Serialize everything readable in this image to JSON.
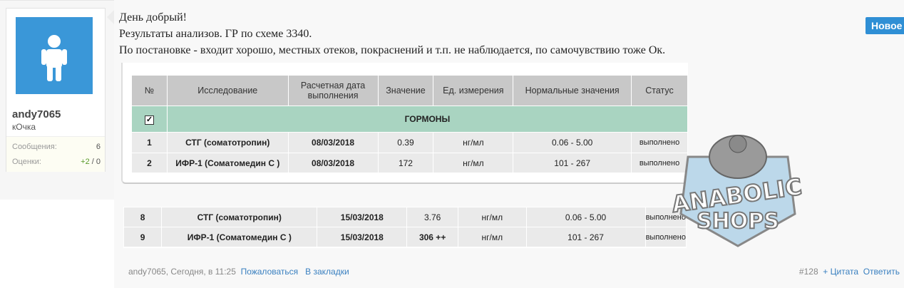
{
  "user": {
    "name": "andy7065",
    "title": "кОчка",
    "stats": [
      {
        "label": "Сообщения:",
        "value": "6"
      },
      {
        "label": "Оценки:",
        "value_pos": "+2",
        "value_rest": " / 0"
      }
    ]
  },
  "post": {
    "lines": [
      "День добрый!",
      "Результаты анализов. ГР по схеме 3340.",
      "По постановке - входит хорошо, местных отеков, покраснений и т.п. не наблюдается, по самочувствию тоже Ок."
    ],
    "new_label": "Новое"
  },
  "table1": {
    "headers": [
      "№",
      "Исследование",
      "Расчетная дата выполнения",
      "Значение",
      "Ед. измерения",
      "Нормальные значения",
      "Статус"
    ],
    "group": "ГОРМОНЫ",
    "rows": [
      [
        "1",
        "СТГ (соматотропин)",
        "08/03/2018",
        "0.39",
        "нг/мл",
        "0.06 - 5.00",
        "выполнено"
      ],
      [
        "2",
        "ИФР-1 (Соматомедин С )",
        "08/03/2018",
        "172",
        "нг/мл",
        "101 - 267",
        "выполнено"
      ]
    ]
  },
  "table2": {
    "rows": [
      [
        "8",
        "СТГ (соматотропин)",
        "15/03/2018",
        "3.76",
        "нг/мл",
        "0.06 - 5.00",
        "выполнено"
      ],
      [
        "9",
        "ИФР-1 (Соматомедин С )",
        "15/03/2018",
        "306 ++",
        "нг/мл",
        "101 - 267",
        "выполнено"
      ]
    ]
  },
  "watermark": {
    "line1": "ANABOLIC",
    "line2": "SHOPS"
  },
  "footer": {
    "meta": "andy7065, Сегодня, в 11:25",
    "report": "Пожаловаться",
    "bookmark": "В закладки",
    "number": "#128",
    "quote": "+ Цитата",
    "reply": "Ответить"
  }
}
